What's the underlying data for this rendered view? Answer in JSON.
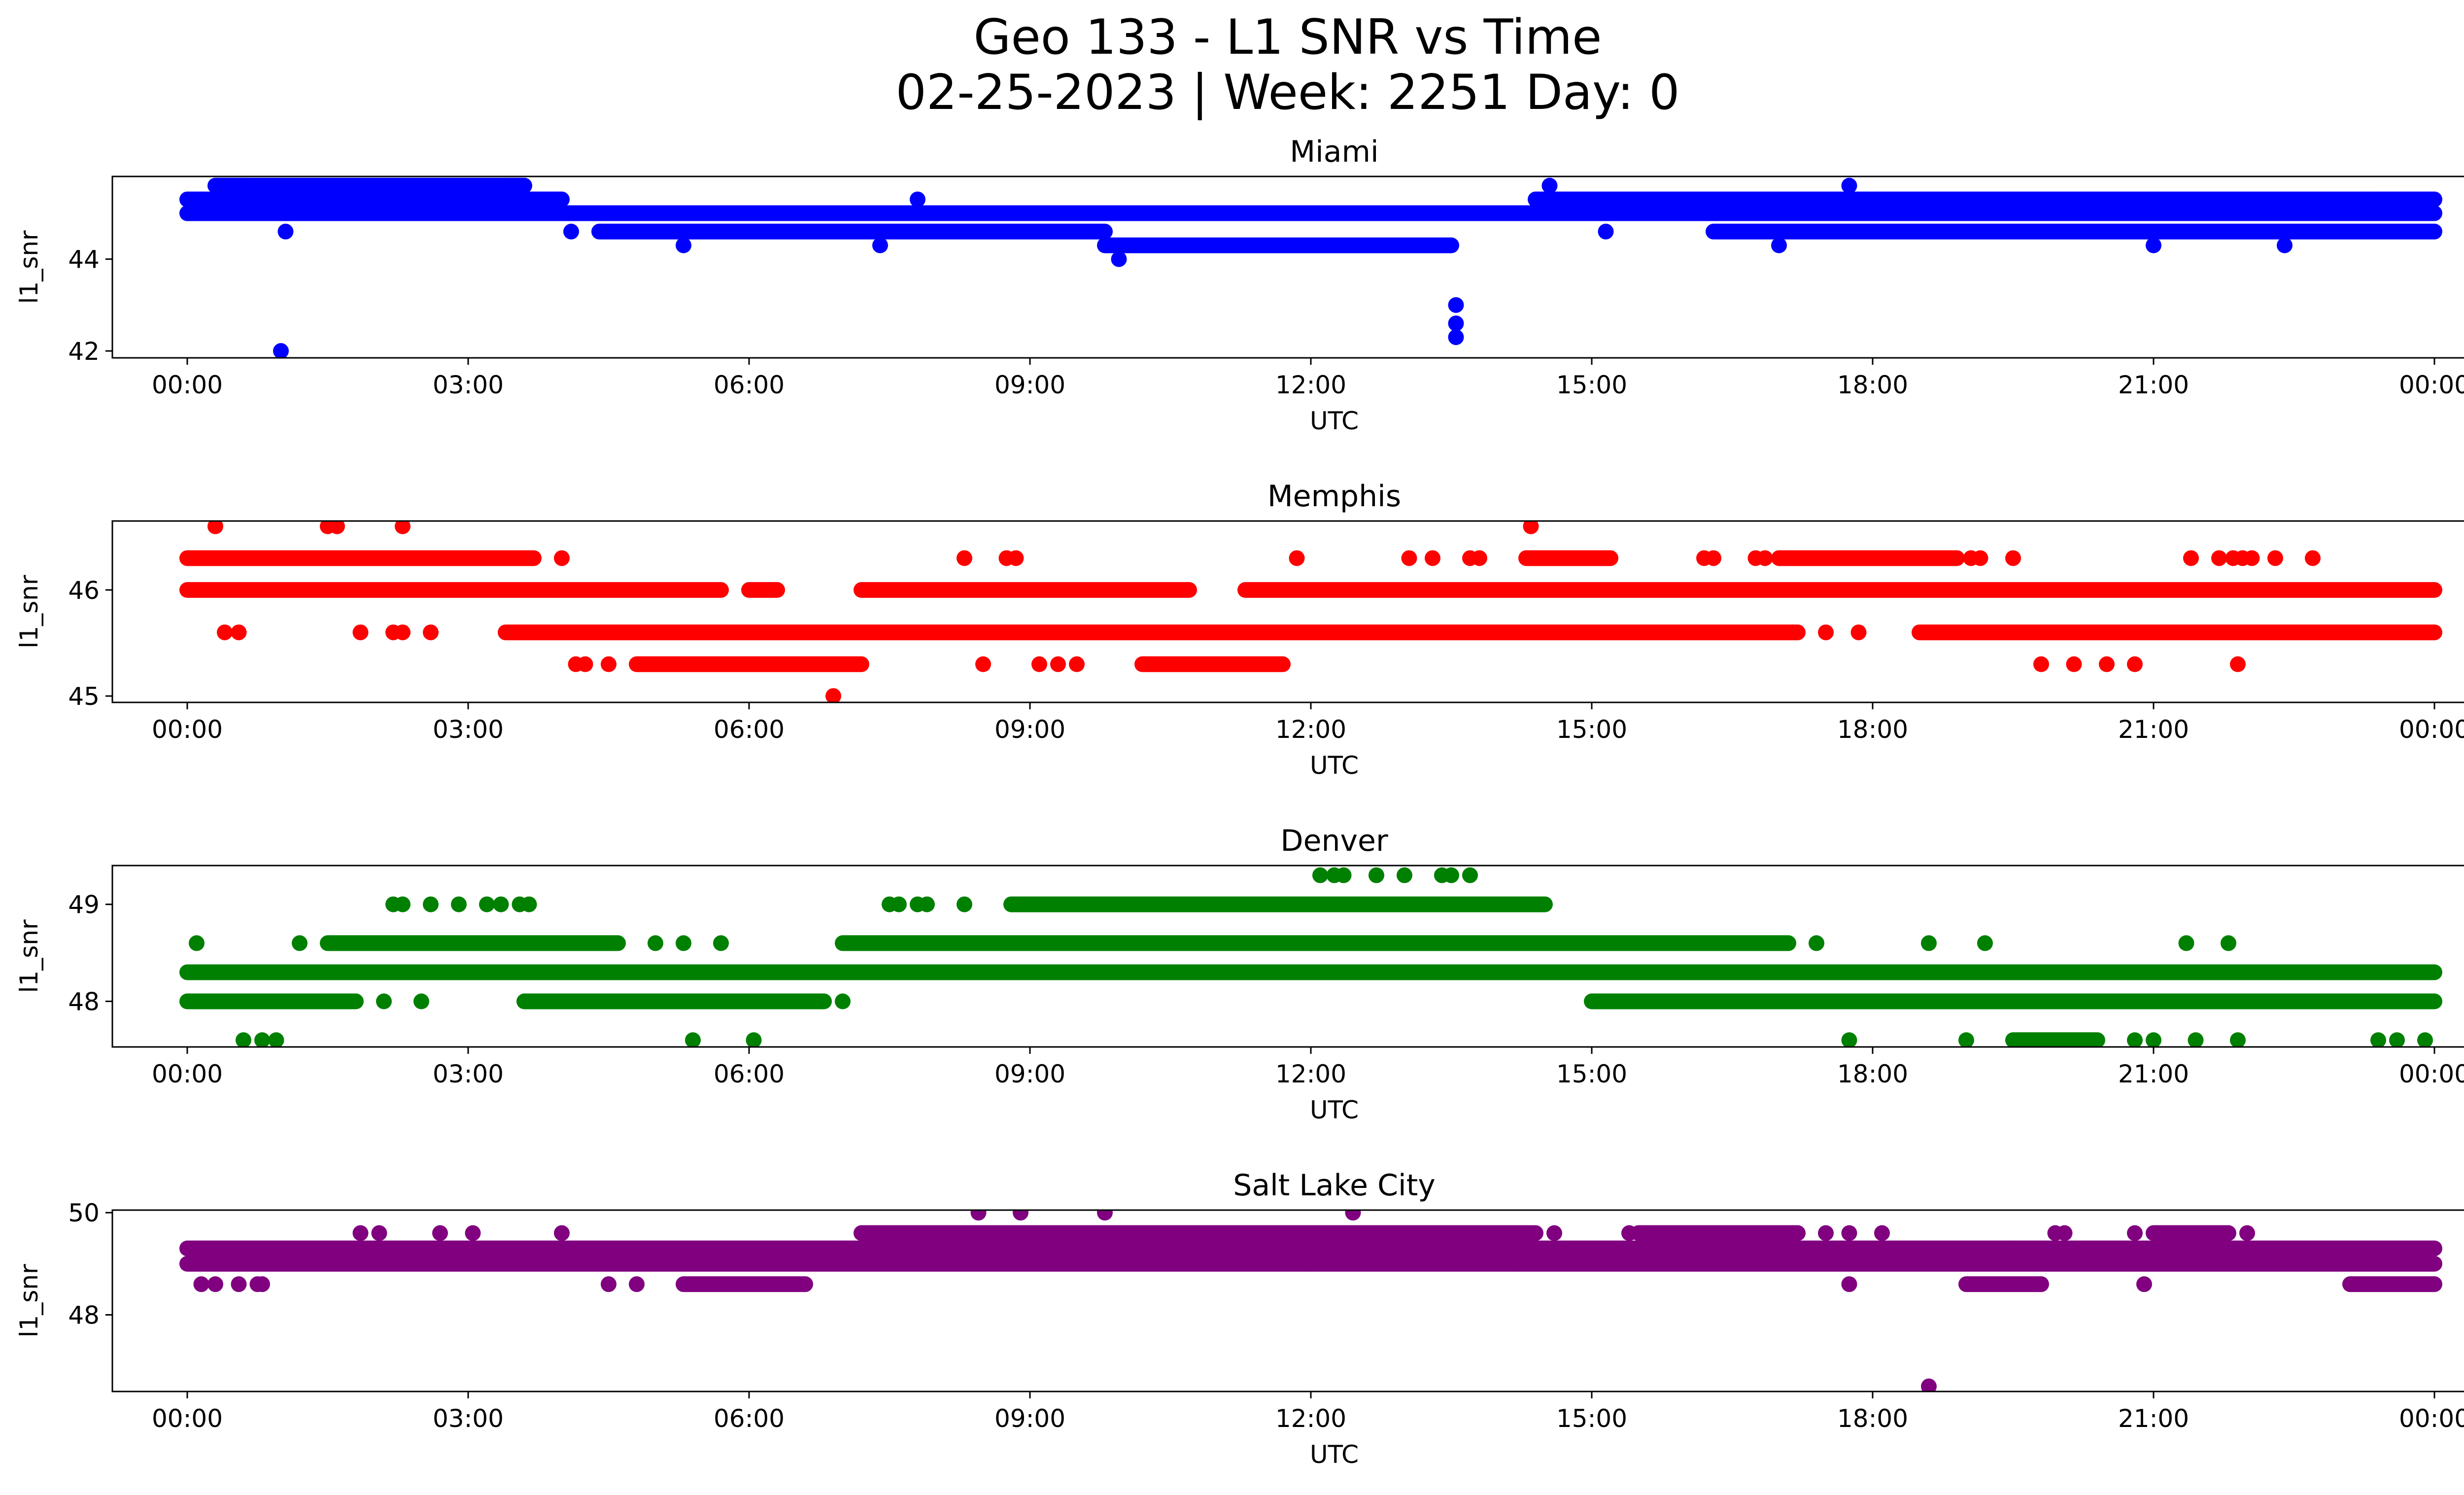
{
  "figure": {
    "title_line1": "Geo 133 - L1 SNR vs Time",
    "title_line2": "02-25-2023 | Week: 2251 Day: 0"
  },
  "chart_data": [
    {
      "type": "scatter",
      "title": "Miami",
      "xlabel": "UTC",
      "ylabel": "l1_snr",
      "x_unit": "hours UTC",
      "xlim": [
        -0.8,
        25.3
      ],
      "ylim": [
        41.85,
        45.8
      ],
      "x_ticks": [
        0,
        3,
        6,
        9,
        12,
        15,
        18,
        21,
        24
      ],
      "x_tick_labels": [
        "00:00",
        "03:00",
        "06:00",
        "09:00",
        "12:00",
        "15:00",
        "18:00",
        "21:00",
        "00:00"
      ],
      "y_ticks": [
        42,
        44
      ],
      "y_tick_labels": [
        "42",
        "44"
      ],
      "color": "#0000ff",
      "bands": [
        {
          "x_start": 0.0,
          "x_end": 24.0,
          "y": 45.0
        },
        {
          "x_start": 0.0,
          "x_end": 4.0,
          "y": 45.3
        },
        {
          "x_start": 0.3,
          "x_end": 3.6,
          "y": 45.6
        },
        {
          "x_start": 14.4,
          "x_end": 24.0,
          "y": 45.3
        },
        {
          "x_start": 4.4,
          "x_end": 9.8,
          "y": 44.6
        },
        {
          "x_start": 9.8,
          "x_end": 13.5,
          "y": 44.3
        },
        {
          "x_start": 16.3,
          "x_end": 24.0,
          "y": 44.6
        }
      ],
      "points": [
        {
          "x": 1.0,
          "y": 42.0
        },
        {
          "x": 1.05,
          "y": 44.6
        },
        {
          "x": 5.3,
          "y": 44.3
        },
        {
          "x": 7.4,
          "y": 44.3
        },
        {
          "x": 9.95,
          "y": 44.0
        },
        {
          "x": 13.55,
          "y": 43.0
        },
        {
          "x": 13.55,
          "y": 42.6
        },
        {
          "x": 13.55,
          "y": 42.3
        },
        {
          "x": 14.55,
          "y": 45.6
        },
        {
          "x": 15.15,
          "y": 44.6
        },
        {
          "x": 17.0,
          "y": 44.3
        },
        {
          "x": 17.75,
          "y": 45.6
        },
        {
          "x": 21.0,
          "y": 44.3
        },
        {
          "x": 22.4,
          "y": 44.3
        },
        {
          "x": 4.1,
          "y": 44.6
        },
        {
          "x": 7.8,
          "y": 45.3
        }
      ]
    },
    {
      "type": "scatter",
      "title": "Memphis",
      "xlabel": "UTC",
      "ylabel": "l1_snr",
      "x_unit": "hours UTC",
      "xlim": [
        -0.8,
        25.3
      ],
      "ylim": [
        44.94,
        46.65
      ],
      "x_ticks": [
        0,
        3,
        6,
        9,
        12,
        15,
        18,
        21,
        24
      ],
      "x_tick_labels": [
        "00:00",
        "03:00",
        "06:00",
        "09:00",
        "12:00",
        "15:00",
        "18:00",
        "21:00",
        "00:00"
      ],
      "y_ticks": [
        45,
        46
      ],
      "y_tick_labels": [
        "45",
        "46"
      ],
      "color": "#ff0000",
      "bands": [
        {
          "x_start": 0.0,
          "x_end": 5.7,
          "y": 46.0
        },
        {
          "x_start": 6.0,
          "x_end": 6.3,
          "y": 46.0
        },
        {
          "x_start": 7.2,
          "x_end": 10.7,
          "y": 46.0
        },
        {
          "x_start": 11.3,
          "x_end": 24.0,
          "y": 46.0
        },
        {
          "x_start": 0.0,
          "x_end": 3.7,
          "y": 46.3
        },
        {
          "x_start": 14.3,
          "x_end": 15.2,
          "y": 46.3
        },
        {
          "x_start": 17.0,
          "x_end": 18.9,
          "y": 46.3
        },
        {
          "x_start": 3.4,
          "x_end": 17.2,
          "y": 45.6
        },
        {
          "x_start": 18.5,
          "x_end": 24.0,
          "y": 45.6
        },
        {
          "x_start": 4.8,
          "x_end": 7.2,
          "y": 45.3
        },
        {
          "x_start": 10.2,
          "x_end": 11.7,
          "y": 45.3
        }
      ],
      "points": [
        {
          "x": 0.3,
          "y": 46.6
        },
        {
          "x": 1.5,
          "y": 46.6
        },
        {
          "x": 1.6,
          "y": 46.6
        },
        {
          "x": 2.3,
          "y": 46.6
        },
        {
          "x": 14.35,
          "y": 46.6
        },
        {
          "x": 6.9,
          "y": 45.0
        },
        {
          "x": 0.4,
          "y": 45.6
        },
        {
          "x": 0.55,
          "y": 45.6
        },
        {
          "x": 1.85,
          "y": 45.6
        },
        {
          "x": 2.2,
          "y": 45.6
        },
        {
          "x": 2.3,
          "y": 45.6
        },
        {
          "x": 2.6,
          "y": 45.6
        },
        {
          "x": 4.15,
          "y": 45.3
        },
        {
          "x": 4.25,
          "y": 45.3
        },
        {
          "x": 4.5,
          "y": 45.3
        },
        {
          "x": 8.3,
          "y": 46.3
        },
        {
          "x": 8.75,
          "y": 46.3
        },
        {
          "x": 8.85,
          "y": 46.3
        },
        {
          "x": 11.85,
          "y": 46.3
        },
        {
          "x": 13.05,
          "y": 46.3
        },
        {
          "x": 13.3,
          "y": 46.3
        },
        {
          "x": 13.7,
          "y": 46.3
        },
        {
          "x": 13.8,
          "y": 46.3
        },
        {
          "x": 16.2,
          "y": 46.3
        },
        {
          "x": 16.3,
          "y": 46.3
        },
        {
          "x": 16.75,
          "y": 46.3
        },
        {
          "x": 16.85,
          "y": 46.3
        },
        {
          "x": 19.05,
          "y": 46.3
        },
        {
          "x": 19.15,
          "y": 46.3
        },
        {
          "x": 19.5,
          "y": 46.3
        },
        {
          "x": 21.4,
          "y": 46.3
        },
        {
          "x": 21.7,
          "y": 46.3
        },
        {
          "x": 21.85,
          "y": 46.3
        },
        {
          "x": 21.95,
          "y": 46.3
        },
        {
          "x": 22.05,
          "y": 46.3
        },
        {
          "x": 22.3,
          "y": 46.3
        },
        {
          "x": 22.7,
          "y": 46.3
        },
        {
          "x": 4.0,
          "y": 46.3
        },
        {
          "x": 3.9,
          "y": 46.0
        },
        {
          "x": 17.5,
          "y": 45.6
        },
        {
          "x": 17.85,
          "y": 45.6
        },
        {
          "x": 8.5,
          "y": 45.3
        },
        {
          "x": 9.1,
          "y": 45.3
        },
        {
          "x": 9.3,
          "y": 45.3
        },
        {
          "x": 9.5,
          "y": 45.3
        },
        {
          "x": 19.8,
          "y": 45.3
        },
        {
          "x": 20.15,
          "y": 45.3
        },
        {
          "x": 20.5,
          "y": 45.3
        },
        {
          "x": 20.8,
          "y": 45.3
        },
        {
          "x": 21.9,
          "y": 45.3
        }
      ]
    },
    {
      "type": "scatter",
      "title": "Denver",
      "xlabel": "UTC",
      "ylabel": "l1_snr",
      "x_unit": "hours UTC",
      "xlim": [
        -0.8,
        25.3
      ],
      "ylim": [
        47.53,
        49.4
      ],
      "x_ticks": [
        0,
        3,
        6,
        9,
        12,
        15,
        18,
        21,
        24
      ],
      "x_tick_labels": [
        "00:00",
        "03:00",
        "06:00",
        "09:00",
        "12:00",
        "15:00",
        "18:00",
        "21:00",
        "00:00"
      ],
      "y_ticks": [
        48,
        49
      ],
      "y_tick_labels": [
        "48",
        "49"
      ],
      "color": "#008000",
      "bands": [
        {
          "x_start": 0.0,
          "x_end": 24.0,
          "y": 48.3
        },
        {
          "x_start": 0.0,
          "x_end": 1.8,
          "y": 48.0
        },
        {
          "x_start": 3.6,
          "x_end": 6.8,
          "y": 48.0
        },
        {
          "x_start": 15.0,
          "x_end": 24.0,
          "y": 48.0
        },
        {
          "x_start": 1.5,
          "x_end": 4.6,
          "y": 48.6
        },
        {
          "x_start": 7.0,
          "x_end": 17.1,
          "y": 48.6
        },
        {
          "x_start": 8.8,
          "x_end": 14.5,
          "y": 49.0
        },
        {
          "x_start": 19.5,
          "x_end": 20.4,
          "y": 47.6
        }
      ],
      "points": [
        {
          "x": 0.1,
          "y": 48.6
        },
        {
          "x": 1.2,
          "y": 48.6
        },
        {
          "x": 2.2,
          "y": 49.0
        },
        {
          "x": 2.3,
          "y": 49.0
        },
        {
          "x": 2.6,
          "y": 49.0
        },
        {
          "x": 2.9,
          "y": 49.0
        },
        {
          "x": 3.2,
          "y": 49.0
        },
        {
          "x": 3.35,
          "y": 49.0
        },
        {
          "x": 3.55,
          "y": 49.0
        },
        {
          "x": 3.65,
          "y": 49.0
        },
        {
          "x": 7.5,
          "y": 49.0
        },
        {
          "x": 7.6,
          "y": 49.0
        },
        {
          "x": 7.8,
          "y": 49.0
        },
        {
          "x": 7.9,
          "y": 49.0
        },
        {
          "x": 8.3,
          "y": 49.0
        },
        {
          "x": 12.1,
          "y": 49.3
        },
        {
          "x": 12.25,
          "y": 49.3
        },
        {
          "x": 12.35,
          "y": 49.3
        },
        {
          "x": 12.7,
          "y": 49.3
        },
        {
          "x": 13.0,
          "y": 49.3
        },
        {
          "x": 13.4,
          "y": 49.3
        },
        {
          "x": 13.5,
          "y": 49.3
        },
        {
          "x": 13.7,
          "y": 49.3
        },
        {
          "x": 0.6,
          "y": 47.6
        },
        {
          "x": 0.8,
          "y": 47.6
        },
        {
          "x": 0.95,
          "y": 47.6
        },
        {
          "x": 5.4,
          "y": 47.6
        },
        {
          "x": 6.05,
          "y": 47.6
        },
        {
          "x": 17.75,
          "y": 47.6
        },
        {
          "x": 19.0,
          "y": 47.6
        },
        {
          "x": 20.8,
          "y": 47.6
        },
        {
          "x": 21.0,
          "y": 47.6
        },
        {
          "x": 21.45,
          "y": 47.6
        },
        {
          "x": 21.9,
          "y": 47.6
        },
        {
          "x": 23.4,
          "y": 47.6
        },
        {
          "x": 23.6,
          "y": 47.6
        },
        {
          "x": 23.9,
          "y": 47.6
        },
        {
          "x": 19.2,
          "y": 48.6
        },
        {
          "x": 21.35,
          "y": 48.6
        },
        {
          "x": 21.8,
          "y": 48.6
        },
        {
          "x": 17.4,
          "y": 48.6
        },
        {
          "x": 18.6,
          "y": 48.6
        },
        {
          "x": 2.1,
          "y": 48.0
        },
        {
          "x": 2.5,
          "y": 48.0
        },
        {
          "x": 7.0,
          "y": 48.0
        },
        {
          "x": 5.0,
          "y": 48.6
        },
        {
          "x": 5.3,
          "y": 48.6
        },
        {
          "x": 5.7,
          "y": 48.6
        }
      ]
    },
    {
      "type": "scatter",
      "title": "Salt Lake City",
      "xlabel": "UTC",
      "ylabel": "l1_snr",
      "x_unit": "hours UTC",
      "xlim": [
        -0.8,
        25.3
      ],
      "ylim": [
        46.5,
        50.05
      ],
      "x_ticks": [
        0,
        3,
        6,
        9,
        12,
        15,
        18,
        21,
        24
      ],
      "x_tick_labels": [
        "00:00",
        "03:00",
        "06:00",
        "09:00",
        "12:00",
        "15:00",
        "18:00",
        "21:00",
        "00:00"
      ],
      "y_ticks": [
        48,
        50
      ],
      "y_tick_labels": [
        "48",
        "50"
      ],
      "color": "#800080",
      "bands": [
        {
          "x_start": 0.0,
          "x_end": 24.0,
          "y": 49.0
        },
        {
          "x_start": 0.0,
          "x_end": 7.0,
          "y": 49.3
        },
        {
          "x_start": 7.0,
          "x_end": 19.5,
          "y": 49.3
        },
        {
          "x_start": 19.5,
          "x_end": 24.0,
          "y": 49.3
        },
        {
          "x_start": 7.2,
          "x_end": 14.4,
          "y": 49.6
        },
        {
          "x_start": 15.5,
          "x_end": 17.2,
          "y": 49.6
        },
        {
          "x_start": 21.0,
          "x_end": 21.8,
          "y": 49.6
        },
        {
          "x_start": 5.3,
          "x_end": 6.6,
          "y": 48.6
        },
        {
          "x_start": 19.0,
          "x_end": 19.8,
          "y": 48.6
        },
        {
          "x_start": 23.1,
          "x_end": 24.0,
          "y": 48.6
        }
      ],
      "points": [
        {
          "x": 8.45,
          "y": 50.0
        },
        {
          "x": 8.9,
          "y": 50.0
        },
        {
          "x": 9.8,
          "y": 50.0
        },
        {
          "x": 12.45,
          "y": 50.0
        },
        {
          "x": 18.6,
          "y": 46.6
        },
        {
          "x": 0.15,
          "y": 48.6
        },
        {
          "x": 0.3,
          "y": 48.6
        },
        {
          "x": 0.55,
          "y": 48.6
        },
        {
          "x": 0.75,
          "y": 48.6
        },
        {
          "x": 0.8,
          "y": 48.6
        },
        {
          "x": 4.5,
          "y": 48.6
        },
        {
          "x": 4.8,
          "y": 48.6
        },
        {
          "x": 17.75,
          "y": 48.6
        },
        {
          "x": 20.9,
          "y": 48.6
        },
        {
          "x": 1.85,
          "y": 49.6
        },
        {
          "x": 2.05,
          "y": 49.6
        },
        {
          "x": 2.7,
          "y": 49.6
        },
        {
          "x": 3.05,
          "y": 49.6
        },
        {
          "x": 4.0,
          "y": 49.6
        },
        {
          "x": 17.75,
          "y": 49.6
        },
        {
          "x": 18.1,
          "y": 49.6
        },
        {
          "x": 19.95,
          "y": 49.6
        },
        {
          "x": 20.05,
          "y": 49.6
        },
        {
          "x": 20.8,
          "y": 49.6
        },
        {
          "x": 22.0,
          "y": 49.6
        },
        {
          "x": 14.6,
          "y": 49.6
        },
        {
          "x": 15.4,
          "y": 49.6
        },
        {
          "x": 17.5,
          "y": 49.6
        },
        {
          "x": 12.0,
          "y": 49.0
        },
        {
          "x": 14.2,
          "y": 49.0
        }
      ]
    }
  ]
}
